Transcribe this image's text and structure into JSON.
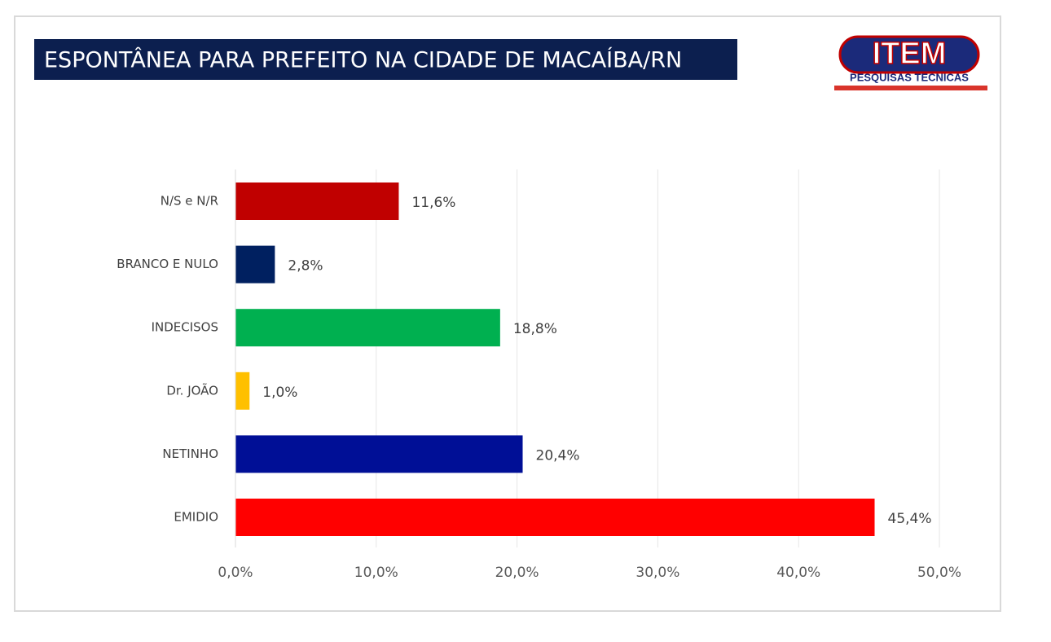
{
  "chart_data": {
    "type": "hbar",
    "title": "ESPONTÂNEA PARA PREFEITO NA CIDADE DE MACAÍBA/RN",
    "categories": [
      "N/S e N/R",
      "BRANCO E NULO",
      "INDECISOS",
      "Dr. JOÃO",
      "NETINHO",
      "EMIDIO"
    ],
    "values": [
      11.6,
      2.8,
      18.8,
      1.0,
      20.4,
      45.4
    ],
    "value_labels": [
      "11,6%",
      "2,8%",
      "18,8%",
      "1,0%",
      "20,4%",
      "45,4%"
    ],
    "colors": [
      "#c00000",
      "#002060",
      "#00b050",
      "#ffc000",
      "#000f96",
      "#ff0000"
    ],
    "xlim": [
      0,
      50
    ],
    "xticks": [
      {
        "value": 0,
        "label": "0,0%"
      },
      {
        "value": 10,
        "label": "10,0%"
      },
      {
        "value": 20,
        "label": "20,0%"
      },
      {
        "value": 30,
        "label": "30,0%"
      },
      {
        "value": 40,
        "label": "40,0%"
      },
      {
        "value": 50,
        "label": "50,0%"
      }
    ],
    "grid": true
  },
  "logo": {
    "name": "ITEM",
    "tagline": "PESQUISAS TECNICAS"
  }
}
